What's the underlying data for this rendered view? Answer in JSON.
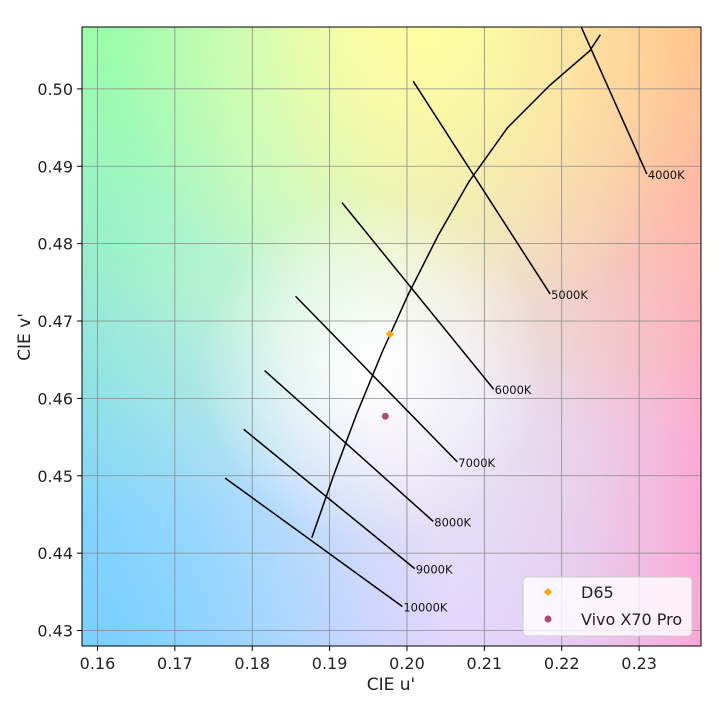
{
  "chart_data": {
    "type": "scatter",
    "xlabel": "CIE u'",
    "ylabel": "CIE v'",
    "xlim": [
      0.158,
      0.238
    ],
    "ylim": [
      0.428,
      0.508
    ],
    "x_ticks": [
      "0.16",
      "0.17",
      "0.18",
      "0.19",
      "0.20",
      "0.21",
      "0.22",
      "0.23"
    ],
    "y_ticks": [
      "0.43",
      "0.44",
      "0.45",
      "0.46",
      "0.47",
      "0.48",
      "0.49",
      "0.50"
    ],
    "grid": true,
    "background": "chromaticity-diagram",
    "planckian_locus": [
      [
        0.1877,
        0.442
      ],
      [
        0.1905,
        0.45
      ],
      [
        0.1935,
        0.458
      ],
      [
        0.1968,
        0.466
      ],
      [
        0.2002,
        0.4735
      ],
      [
        0.204,
        0.481
      ],
      [
        0.208,
        0.488
      ],
      [
        0.213,
        0.495
      ],
      [
        0.2185,
        0.5005
      ],
      [
        0.2236,
        0.5049
      ],
      [
        0.225,
        0.507
      ]
    ],
    "isotemperature_lines": [
      {
        "label": "4000K",
        "from": [
          0.2223,
          0.5085
        ],
        "to": [
          0.231,
          0.489
        ]
      },
      {
        "label": "5000K",
        "from": [
          0.2008,
          0.501
        ],
        "to": [
          0.2185,
          0.4735
        ]
      },
      {
        "label": "6000K",
        "from": [
          0.1916,
          0.4853
        ],
        "to": [
          0.2112,
          0.4612
        ]
      },
      {
        "label": "7000K",
        "from": [
          0.1856,
          0.4732
        ],
        "to": [
          0.2065,
          0.4518
        ]
      },
      {
        "label": "8000K",
        "from": [
          0.1816,
          0.4636
        ],
        "to": [
          0.2034,
          0.4441
        ]
      },
      {
        "label": "9000K",
        "from": [
          0.1789,
          0.456
        ],
        "to": [
          0.201,
          0.438
        ]
      },
      {
        "label": "10000K",
        "from": [
          0.1765,
          0.4497
        ],
        "to": [
          0.1994,
          0.4331
        ]
      }
    ],
    "series": [
      {
        "name": "D65",
        "color": "#FFA500",
        "marker": "diamond",
        "points": [
          [
            0.1978,
            0.4683
          ]
        ]
      },
      {
        "name": "Vivo X70 Pro",
        "color": "#B04A6E",
        "marker": "circle",
        "points": [
          [
            0.1972,
            0.4577
          ]
        ]
      }
    ],
    "legend_position": "bottom-right"
  }
}
